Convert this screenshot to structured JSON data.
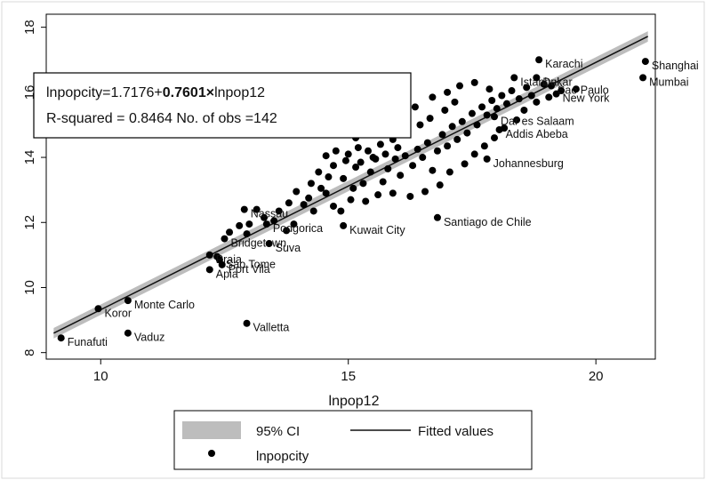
{
  "chart_data": {
    "type": "scatter",
    "xlabel": "lnpop12",
    "ylabel": "",
    "xlim": [
      8.9,
      21.2
    ],
    "ylim": [
      7.8,
      18.4
    ],
    "xticks": [
      "10",
      "15",
      "20"
    ],
    "yticks": [
      "8",
      "10",
      "12",
      "14",
      "16",
      "18"
    ],
    "xtick_values": [
      10,
      15,
      20
    ],
    "ytick_values": [
      8,
      10,
      12,
      14,
      16,
      18
    ],
    "grid": false,
    "annotation": {
      "line1_prefix": "lnpopcity=1.7176+",
      "line1_bold": "0.7601×",
      "line1_suffix": "lnpop12",
      "line2": "R-squared = 0.8464   No. of obs =142"
    },
    "fit": {
      "intercept": 1.7176,
      "slope": 0.7601
    },
    "ci_halfwidth": 0.16,
    "legend": {
      "position": "bottom",
      "items": [
        {
          "label": "95% CI",
          "kind": "band"
        },
        {
          "label": "Fitted values",
          "kind": "line"
        },
        {
          "label": "lnpopcity",
          "kind": "marker"
        }
      ]
    },
    "labeled_points": [
      {
        "name": "Funafuti",
        "x": 9.2,
        "y": 8.45
      },
      {
        "name": "Koror",
        "x": 9.95,
        "y": 9.35
      },
      {
        "name": "Monte Carlo",
        "x": 10.55,
        "y": 9.6
      },
      {
        "name": "Vaduz",
        "x": 10.55,
        "y": 8.6
      },
      {
        "name": "Valletta",
        "x": 12.95,
        "y": 8.9
      },
      {
        "name": "Apia",
        "x": 12.2,
        "y": 10.55
      },
      {
        "name": "Port Vila",
        "x": 12.45,
        "y": 10.7
      },
      {
        "name": "Sao Tome",
        "x": 12.4,
        "y": 10.85
      },
      {
        "name": "Praia",
        "x": 12.2,
        "y": 11.0
      },
      {
        "name": "Bridgetown",
        "x": 12.5,
        "y": 11.5
      },
      {
        "name": "Suva",
        "x": 13.4,
        "y": 11.35
      },
      {
        "name": "Podgorica",
        "x": 13.35,
        "y": 11.95
      },
      {
        "name": "Nassau",
        "x": 12.9,
        "y": 12.4
      },
      {
        "name": "Kuwait City",
        "x": 14.9,
        "y": 11.9
      },
      {
        "name": "Santiago de Chile",
        "x": 16.8,
        "y": 12.15
      },
      {
        "name": "Johannesburg",
        "x": 17.8,
        "y": 13.95
      },
      {
        "name": "Addis Abeba",
        "x": 18.05,
        "y": 14.85
      },
      {
        "name": "Dar es Salaam",
        "x": 17.95,
        "y": 15.25
      },
      {
        "name": "Karachi",
        "x": 18.85,
        "y": 17.0
      },
      {
        "name": "Shanghai",
        "x": 21.0,
        "y": 16.95
      },
      {
        "name": "Mumbai",
        "x": 20.95,
        "y": 16.45
      },
      {
        "name": "New York",
        "x": 19.2,
        "y": 15.95
      },
      {
        "name": "Sao Paulo",
        "x": 19.1,
        "y": 16.2
      },
      {
        "name": "Istanbul",
        "x": 18.35,
        "y": 16.45
      },
      {
        "name": "Dakar",
        "x": 18.8,
        "y": 16.45
      }
    ],
    "cluster_points": [
      [
        12.35,
        10.95
      ],
      [
        12.6,
        11.7
      ],
      [
        12.8,
        11.9
      ],
      [
        13.0,
        11.95
      ],
      [
        13.15,
        12.4
      ],
      [
        13.5,
        12.05
      ],
      [
        13.75,
        11.75
      ],
      [
        13.9,
        11.95
      ],
      [
        14.1,
        12.55
      ],
      [
        14.3,
        12.35
      ],
      [
        14.2,
        12.75
      ],
      [
        13.8,
        12.6
      ],
      [
        13.95,
        12.95
      ],
      [
        14.45,
        13.05
      ],
      [
        14.55,
        12.9
      ],
      [
        14.6,
        13.4
      ],
      [
        14.7,
        12.5
      ],
      [
        14.85,
        12.35
      ],
      [
        14.9,
        13.35
      ],
      [
        15.1,
        13.05
      ],
      [
        15.15,
        13.7
      ],
      [
        15.3,
        13.2
      ],
      [
        15.45,
        13.55
      ],
      [
        15.55,
        13.95
      ],
      [
        15.6,
        12.85
      ],
      [
        15.7,
        13.25
      ],
      [
        15.8,
        13.65
      ],
      [
        15.95,
        13.95
      ],
      [
        16.05,
        13.45
      ],
      [
        16.15,
        14.05
      ],
      [
        16.3,
        13.75
      ],
      [
        16.4,
        14.25
      ],
      [
        16.5,
        14.0
      ],
      [
        16.6,
        14.45
      ],
      [
        16.7,
        13.6
      ],
      [
        16.8,
        14.2
      ],
      [
        16.9,
        14.7
      ],
      [
        17.0,
        14.35
      ],
      [
        17.1,
        14.95
      ],
      [
        17.2,
        14.55
      ],
      [
        17.3,
        15.1
      ],
      [
        17.4,
        14.75
      ],
      [
        17.5,
        15.35
      ],
      [
        17.6,
        15.0
      ],
      [
        17.7,
        15.55
      ],
      [
        17.8,
        15.3
      ],
      [
        17.9,
        15.75
      ],
      [
        18.0,
        15.5
      ],
      [
        18.1,
        15.9
      ],
      [
        18.2,
        15.65
      ],
      [
        18.3,
        16.05
      ],
      [
        18.45,
        15.8
      ],
      [
        18.6,
        16.15
      ],
      [
        18.7,
        15.9
      ],
      [
        18.95,
        16.25
      ],
      [
        19.3,
        16.05
      ],
      [
        19.6,
        16.1
      ],
      [
        15.0,
        14.1
      ],
      [
        15.2,
        14.3
      ],
      [
        15.4,
        14.2
      ],
      [
        15.65,
        14.4
      ],
      [
        15.9,
        14.55
      ],
      [
        16.2,
        14.8
      ],
      [
        16.45,
        15.0
      ],
      [
        16.65,
        15.2
      ],
      [
        16.95,
        15.45
      ],
      [
        17.15,
        15.7
      ],
      [
        14.7,
        13.75
      ],
      [
        14.95,
        13.9
      ],
      [
        15.25,
        13.85
      ],
      [
        15.5,
        14.0
      ],
      [
        15.75,
        14.1
      ],
      [
        16.0,
        14.3
      ],
      [
        14.55,
        14.05
      ],
      [
        14.75,
        14.2
      ],
      [
        15.05,
        12.7
      ],
      [
        15.35,
        12.65
      ],
      [
        15.9,
        12.9
      ],
      [
        16.25,
        12.8
      ],
      [
        16.55,
        12.95
      ],
      [
        16.85,
        13.15
      ],
      [
        17.05,
        13.55
      ],
      [
        17.35,
        13.8
      ],
      [
        17.55,
        14.1
      ],
      [
        17.75,
        14.35
      ],
      [
        17.95,
        14.6
      ],
      [
        18.15,
        14.9
      ],
      [
        18.4,
        15.15
      ],
      [
        18.55,
        15.45
      ],
      [
        18.8,
        15.7
      ],
      [
        19.05,
        15.85
      ],
      [
        14.4,
        13.55
      ],
      [
        14.25,
        13.2
      ],
      [
        13.6,
        12.35
      ],
      [
        13.3,
        12.15
      ],
      [
        12.95,
        11.65
      ],
      [
        15.8,
        15.05
      ],
      [
        16.1,
        15.3
      ],
      [
        16.35,
        15.55
      ],
      [
        16.7,
        15.85
      ],
      [
        17.0,
        16.0
      ],
      [
        17.25,
        16.2
      ],
      [
        17.55,
        16.3
      ],
      [
        17.85,
        16.1
      ],
      [
        15.15,
        14.6
      ],
      [
        15.45,
        14.75
      ]
    ]
  },
  "colors": {
    "background": "#ffffff",
    "plot_area": "#ffffff",
    "axis": "#000000",
    "ci_band": "#bdbdbd",
    "fit_line": "#111111",
    "marker": "#000000"
  }
}
